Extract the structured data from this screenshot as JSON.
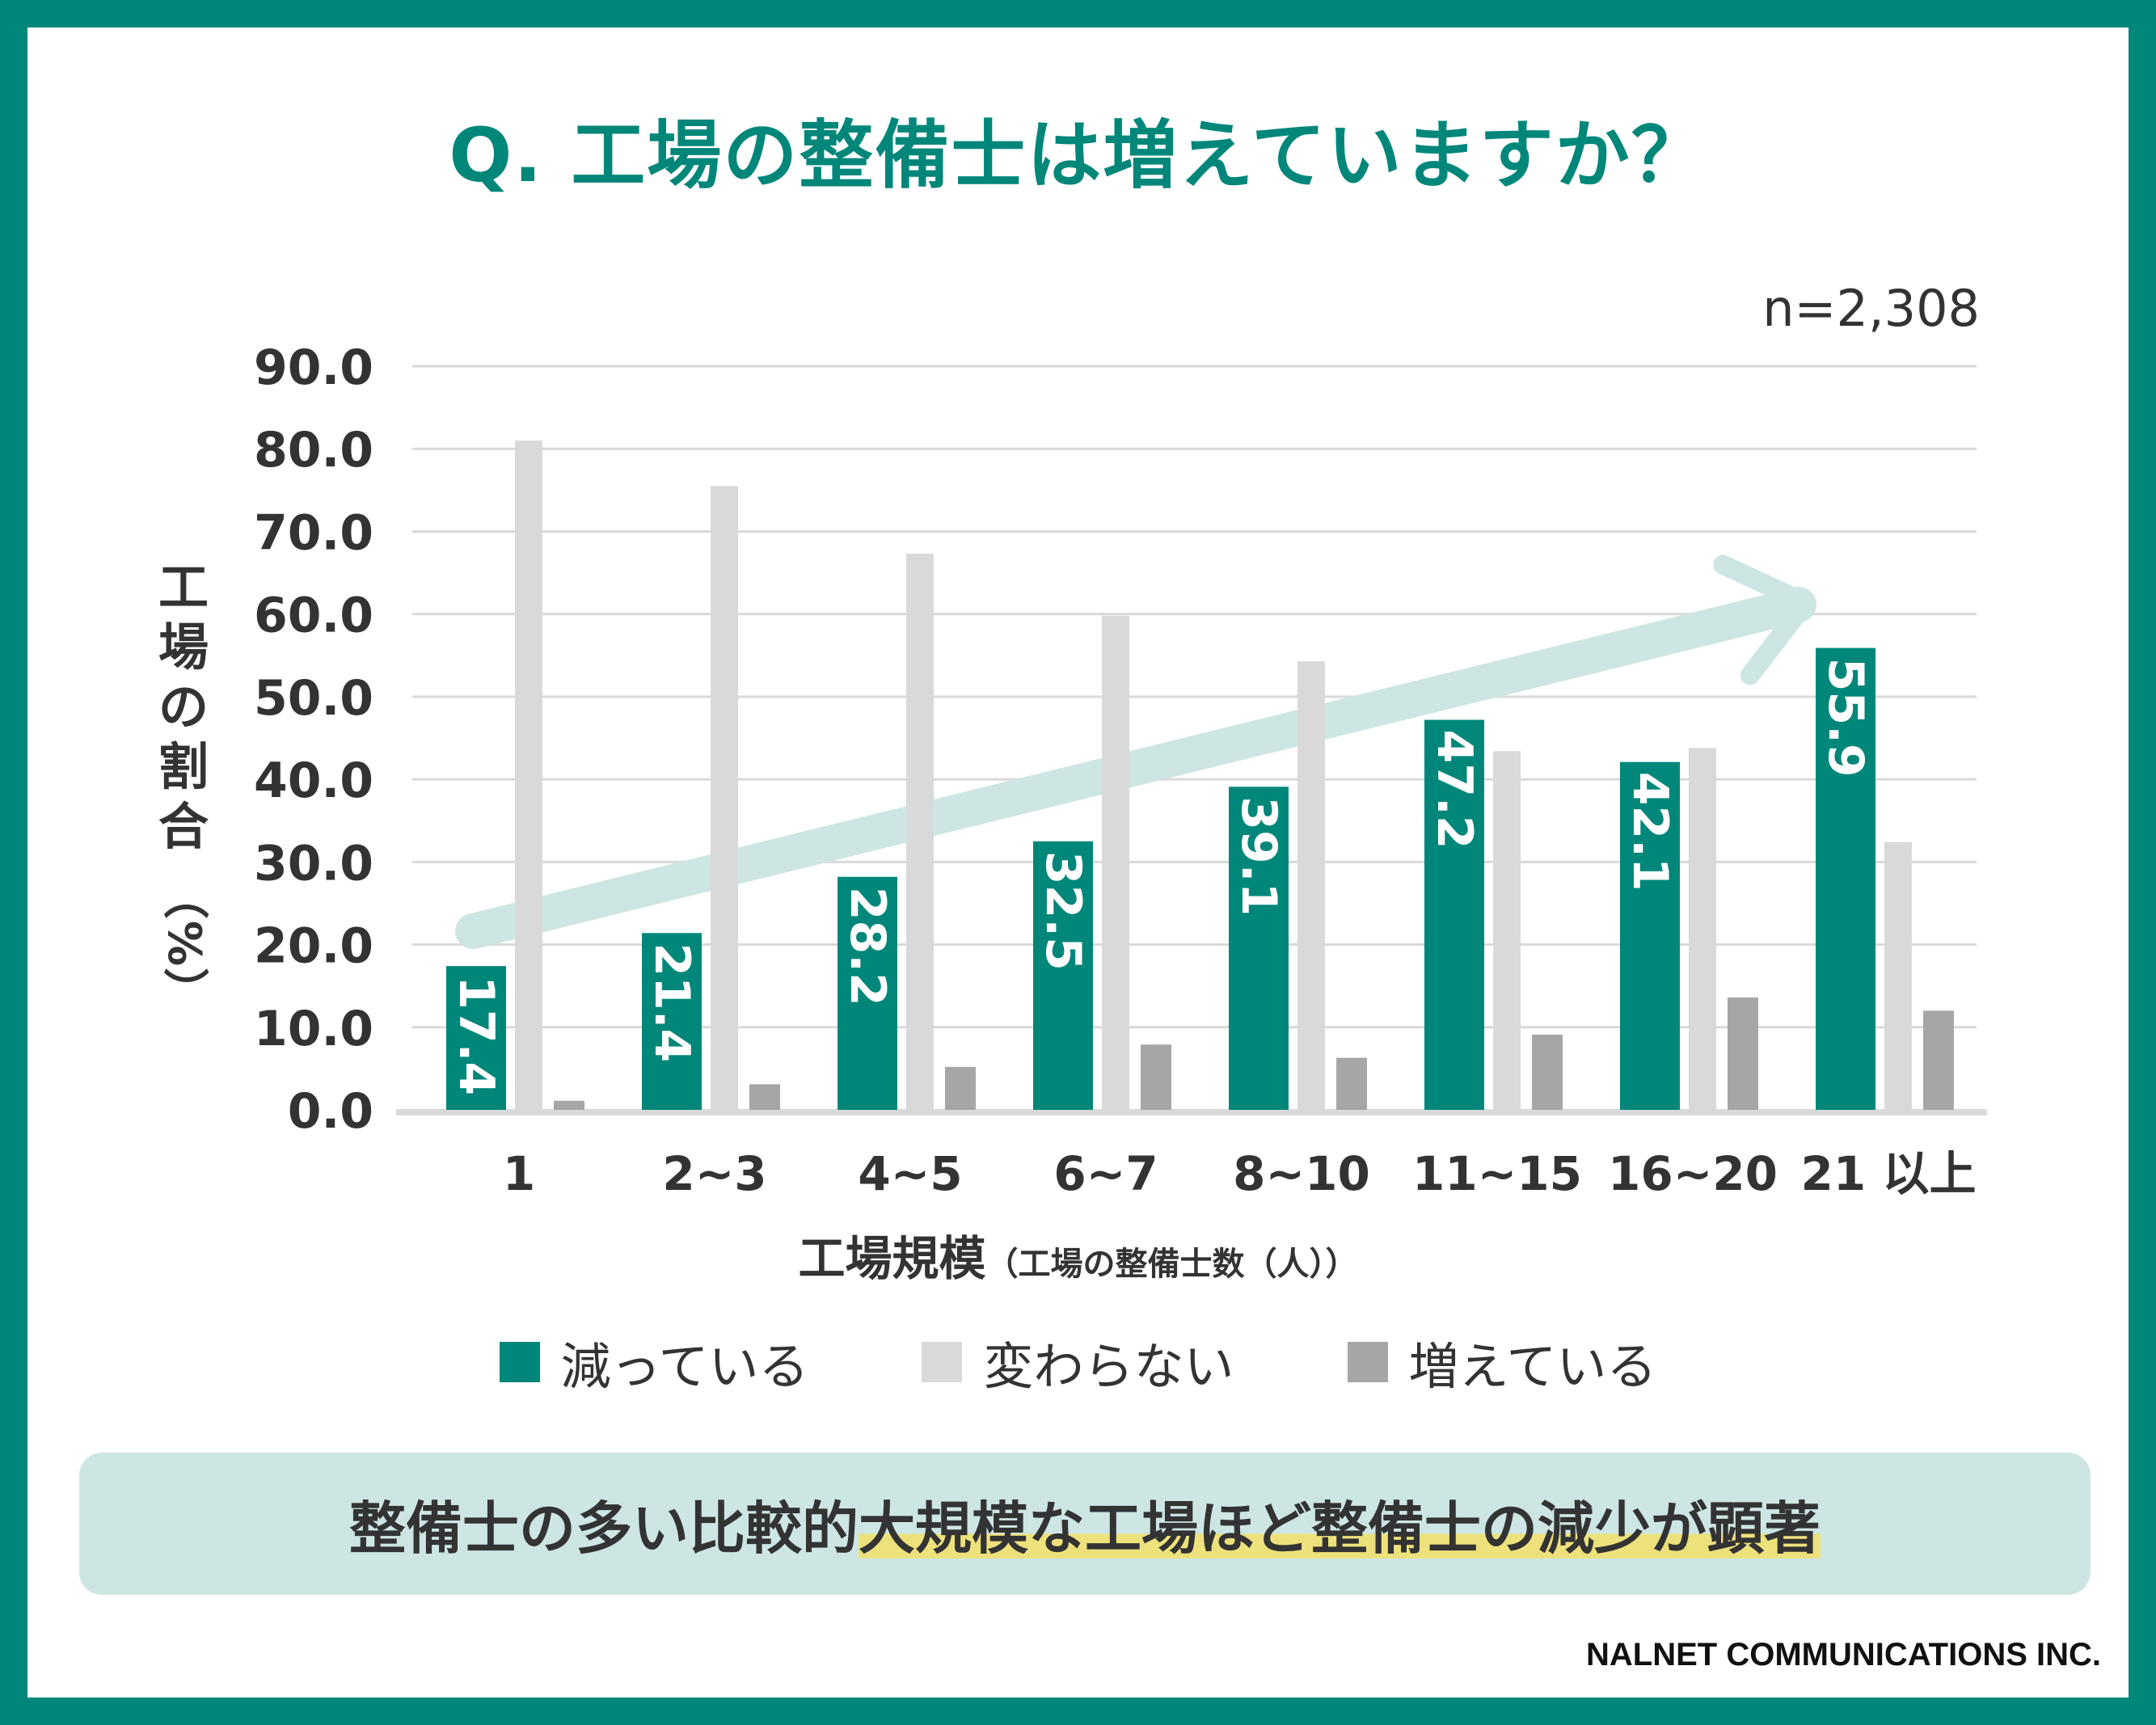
{
  "title": "Q. 工場の整備士は増えていますか？",
  "sample_size": "n=2,308",
  "y_axis_title": "工場の割合",
  "y_axis_unit": "（%）",
  "x_axis_title_main": "工場規模",
  "x_axis_title_sub": "（工場の整備士数（人））",
  "summary": {
    "prefix": "整備士の多い比較的",
    "highlight": "大規模な工場ほど整備士の減少が顕著"
  },
  "credit": "NALNET COMMUNICATIONS INC.",
  "colors": {
    "frame": "#00877a",
    "decrease": "#00877a",
    "no_change": "#d9d9d9",
    "increase": "#a8a5a5",
    "arrow": "#cde6e4",
    "summary_bg": "#cde6e4",
    "highlight": "#ede17c"
  },
  "chart_data": {
    "type": "bar",
    "categories": [
      "1",
      "2~3",
      "4~5",
      "6~7",
      "8~10",
      "11~15",
      "16~20",
      "21 以上"
    ],
    "series": [
      {
        "name": "減っている",
        "values": [
          17.4,
          21.4,
          28.2,
          32.5,
          39.1,
          47.2,
          42.1,
          55.9
        ]
      },
      {
        "name": "変わらない",
        "values": [
          81.0,
          75.5,
          67.3,
          59.8,
          54.3,
          43.4,
          43.8,
          32.4
        ]
      },
      {
        "name": "増えている",
        "values": [
          1.1,
          3.1,
          5.2,
          7.9,
          6.3,
          9.1,
          13.6,
          12.0
        ]
      }
    ],
    "y_ticks": [
      "0.0",
      "10.0",
      "20.0",
      "30.0",
      "40.0",
      "50.0",
      "60.0",
      "70.0",
      "80.0",
      "90.0"
    ],
    "ylim": [
      0,
      90
    ],
    "grid": true,
    "legend_position": "bottom",
    "data_labels_series": "減っている"
  }
}
